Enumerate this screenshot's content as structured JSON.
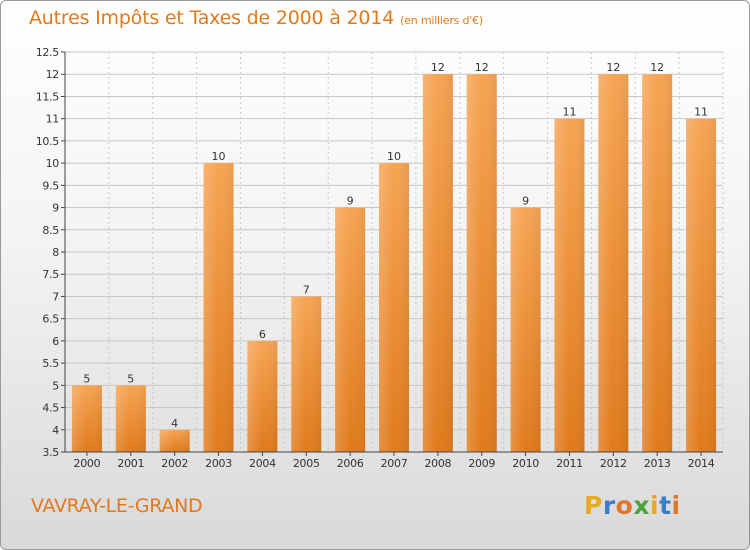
{
  "title": "Autres Impôts et Taxes de 2000 à 2014",
  "unit_note": "(en milliers d'€)",
  "commune": "VAVRAY-LE-GRAND",
  "brand": {
    "letters": [
      "P",
      "r",
      "o",
      "x",
      "i",
      "t",
      "i"
    ],
    "colors": [
      "#e8a825",
      "#3a7ec8",
      "#e0762a",
      "#4aa33c",
      "#e8a825",
      "#3a7ec8",
      "#e0762a"
    ]
  },
  "colors": {
    "bar": "#f08c2e",
    "bar_light": "#f7a95a",
    "title": "#e07a1c",
    "axis": "#444444",
    "grid": "#c8c8c8"
  },
  "chart_data": {
    "type": "bar",
    "title": "Autres Impôts et Taxes de 2000 à 2014",
    "xlabel": "",
    "ylabel": "",
    "ylim": [
      3.5,
      12.5
    ],
    "y_ticks": [
      "3.5",
      "4",
      "4.5",
      "5",
      "5.5",
      "6",
      "6.5",
      "7",
      "7.5",
      "8",
      "8.5",
      "9",
      "9.5",
      "10",
      "10.5",
      "11",
      "11.5",
      "12",
      "12.5"
    ],
    "grid": true,
    "categories": [
      "2000",
      "2001",
      "2002",
      "2003",
      "2004",
      "2005",
      "2006",
      "2007",
      "2008",
      "2009",
      "2010",
      "2011",
      "2012",
      "2013",
      "2014"
    ],
    "values": [
      5,
      5,
      4,
      10,
      6,
      7,
      9,
      10,
      12,
      12,
      9,
      11,
      12,
      12,
      11
    ],
    "labels": [
      "5",
      "5",
      "4",
      "10",
      "6",
      "7",
      "9",
      "10",
      "12",
      "12",
      "9",
      "11",
      "12",
      "12",
      "11"
    ]
  }
}
